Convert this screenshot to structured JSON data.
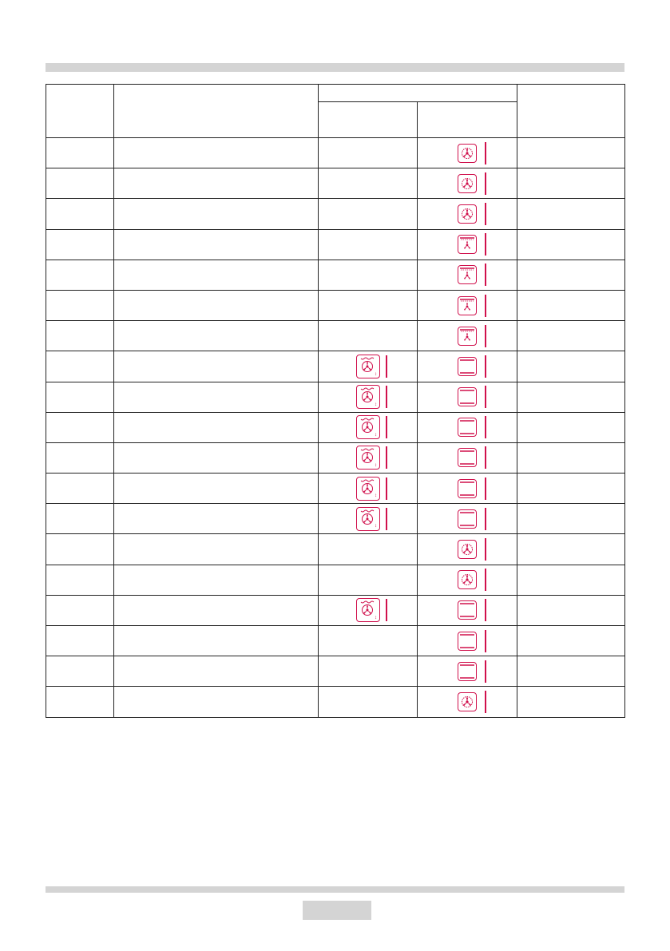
{
  "accent_color": "#d0104c",
  "table": {
    "header": {
      "col1": "",
      "col2": "",
      "group": "",
      "sub1": "",
      "sub2": "",
      "col5": ""
    },
    "rows": [
      {
        "left": null,
        "right": "fan-ring-icon"
      },
      {
        "left": null,
        "right": "fan-ring-icon"
      },
      {
        "left": null,
        "right": "fan-ring-icon"
      },
      {
        "left": null,
        "right": "grill-fan-icon"
      },
      {
        "left": null,
        "right": "grill-fan-icon"
      },
      {
        "left": null,
        "right": "grill-fan-icon"
      },
      {
        "left": null,
        "right": "grill-fan-icon"
      },
      {
        "left": "steam-fan-icon",
        "right": "top-bottom-heat-icon"
      },
      {
        "left": "steam-fan-icon",
        "right": "top-bottom-heat-icon"
      },
      {
        "left": "steam-fan-icon",
        "right": "top-bottom-heat-icon"
      },
      {
        "left": "steam-fan-icon",
        "right": "top-bottom-heat-icon"
      },
      {
        "left": "steam-fan-icon",
        "right": "top-bottom-heat-icon"
      },
      {
        "left": "steam-fan-icon",
        "right": "top-bottom-heat-icon"
      },
      {
        "left": null,
        "right": "fan-ring-icon"
      },
      {
        "left": null,
        "right": "fan-ring-icon"
      },
      {
        "left": "steam-fan-icon",
        "right": "top-bottom-heat-icon"
      },
      {
        "left": null,
        "right": "top-bottom-heat-icon"
      },
      {
        "left": null,
        "right": "top-bottom-heat-icon"
      },
      {
        "left": null,
        "right": "fan-ring-icon"
      }
    ]
  }
}
